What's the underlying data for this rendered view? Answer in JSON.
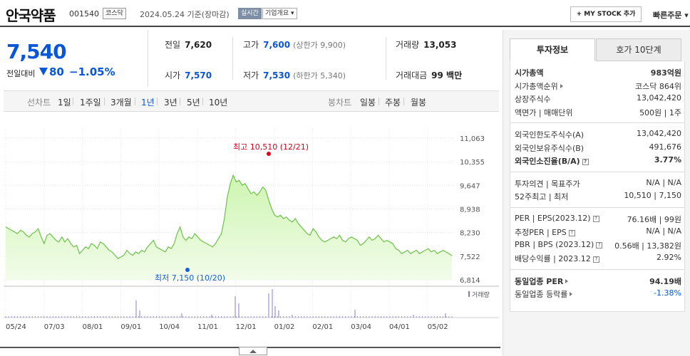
{
  "header": {
    "name": "안국약품",
    "code": "001540",
    "market": "코스닥",
    "date": "2024.05.24  기준(장마감)",
    "realtime_label": "실시간",
    "company_overview": "기업개요 ▾",
    "mystock_button": "+ MY STOCK 추가",
    "quick_order": "빠른주문 ▾"
  },
  "price": {
    "current": "7,540",
    "change_label": "전일대비",
    "change": "80",
    "change_rate": "−1.05%"
  },
  "stats": {
    "prev_label": "전일",
    "prev": "7,620",
    "high_label": "고가",
    "high": "7,600",
    "upper_limit": "(상한가 9,900)",
    "volume_label": "거래량",
    "volume": "13,053",
    "open_label": "시가",
    "open": "7,570",
    "low_label": "저가",
    "low": "7,530",
    "lower_limit": "(하한가 5,340)",
    "amount_label": "거래대금",
    "amount": "99 백만"
  },
  "chart_tabs": {
    "line_label": "선차트",
    "line_items": [
      "1일",
      "1주일",
      "3개월",
      "1년",
      "3년",
      "5년",
      "10년"
    ],
    "active": "1년",
    "candle_label": "봉차트",
    "candle_items": [
      "일봉",
      "주봉",
      "월봉"
    ]
  },
  "chart_data": {
    "type": "area",
    "yticks": [
      "11,063",
      "10,355",
      "9,647",
      "8,938",
      "8,230",
      "7,522",
      "6,814"
    ],
    "ylim": [
      6814,
      11063
    ],
    "xticks": [
      "05/24",
      "07/03",
      "08/01",
      "09/01",
      "10/04",
      "11/01",
      "12/01",
      "01/02",
      "02/01",
      "03/04",
      "04/01",
      "05/02"
    ],
    "high_annotation": "최고 10,510 (12/21)",
    "low_annotation": "최저 7,150 (10/20)",
    "volume_legend": "거래량",
    "values": [
      8400,
      8350,
      8300,
      8250,
      8200,
      8300,
      8250,
      8150,
      8100,
      8200,
      8250,
      8350,
      8100,
      7900,
      8150,
      8200,
      8100,
      8000,
      7950,
      8100,
      7950,
      8050,
      7900,
      7800,
      7850,
      7600,
      7700,
      7800,
      7750,
      7900,
      7850,
      7750,
      7950,
      7900,
      7800,
      7700,
      7650,
      7550,
      7450,
      7500,
      7550,
      7700,
      7600,
      7550,
      7650,
      7600,
      7700,
      7650,
      7800,
      7900,
      8000,
      7800,
      7750,
      7700,
      7650,
      7800,
      7750,
      7900,
      8200,
      8400,
      8100,
      8000,
      8100,
      8050,
      8200,
      8100,
      8000,
      7950,
      7900,
      7850,
      7800,
      7900,
      8050,
      8200,
      8650,
      9300,
      9700,
      9950,
      9750,
      9800,
      9650,
      9700,
      9550,
      9400,
      9450,
      9350,
      9450,
      9600,
      9500,
      9200,
      8950,
      8750,
      8700,
      8750,
      8650,
      8700,
      8600,
      8550,
      8650,
      8500,
      8400,
      8300,
      8200,
      8150,
      8350,
      8250,
      8100,
      8000,
      7950,
      8000,
      8050,
      8100,
      8050,
      8150,
      8000,
      7950,
      8050,
      8100,
      8050,
      8000,
      7850,
      7900,
      8000,
      8100,
      8000,
      8050,
      8150,
      8050,
      7950,
      8000,
      7950,
      7900,
      7750,
      7700,
      7600,
      7650,
      7700,
      7600,
      7650,
      7700,
      7600,
      7650,
      7700,
      7750,
      7650,
      7700,
      7600,
      7650,
      7700,
      7650,
      7600,
      7540
    ]
  },
  "right_panel": {
    "tab_active": "투자정보",
    "tab_other": "호가 10단계",
    "g1": [
      {
        "k": "시가총액",
        "v": "983억원"
      },
      {
        "k": "시가총액순위",
        "v": "코스닥 864위"
      },
      {
        "k": "상장주식수",
        "v": "13,042,420"
      },
      {
        "k": "액면가 | 매매단위",
        "v": "500원 | 1주"
      }
    ],
    "g2": [
      {
        "k": "외국인한도주식수(A)",
        "v": "13,042,420"
      },
      {
        "k": "외국인보유주식수(B)",
        "v": "491,676"
      },
      {
        "k": "외국인소진율(B/A)",
        "v": "3.77%"
      }
    ],
    "g3": [
      {
        "k": "투자의견 | 목표주가",
        "v": "N/A | N/A"
      },
      {
        "k": "52주최고 | 최저",
        "v": "10,510 | 7,150"
      }
    ],
    "g4": [
      {
        "k": "PER | EPS(2023.12)",
        "v": "76.16배 | 99원"
      },
      {
        "k": "추정PER | EPS",
        "v": "N/A | N/A"
      },
      {
        "k": "PBR | BPS (2023.12)",
        "v": "0.56배 | 13,382원"
      },
      {
        "k": "배당수익률 | 2023.12",
        "v": "2.92%"
      }
    ],
    "g5": [
      {
        "k": "동일업종 PER",
        "v": "94.19배"
      },
      {
        "k": "동일업종 등락률",
        "v": "-1.38%"
      }
    ]
  }
}
